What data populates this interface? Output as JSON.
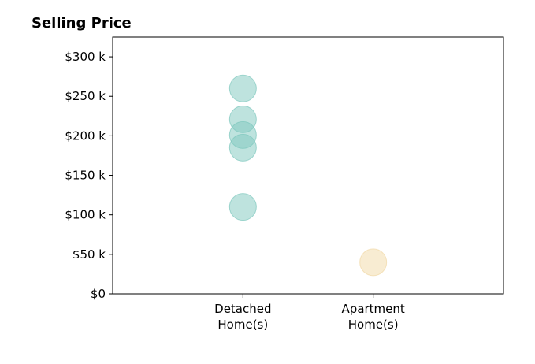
{
  "chart_data": {
    "type": "scatter",
    "title": "Selling Price",
    "xlabel": "",
    "ylabel": "",
    "categories": [
      "Detached Home(s)",
      "Apartment Home(s)"
    ],
    "category_label_lines": [
      [
        "Detached",
        "Home(s)"
      ],
      [
        "Apartment",
        "Home(s)"
      ]
    ],
    "xlim": [
      0,
      3
    ],
    "ylim": [
      0,
      325000
    ],
    "y_ticks": [
      0,
      50000,
      100000,
      150000,
      200000,
      250000,
      300000
    ],
    "y_tick_labels": [
      "$0",
      "$50 k",
      "$100 k",
      "$150 k",
      "$200 k",
      "$250 k",
      "$300 k"
    ],
    "grid": false,
    "legend": "none",
    "series": [
      {
        "category": "Detached Home(s)",
        "x": 1,
        "color": "#7ec8bd",
        "values": [
          260000,
          221000,
          201000,
          185000,
          110000
        ]
      },
      {
        "category": "Apartment Home(s)",
        "x": 2,
        "color": "#f1d9a6",
        "values": [
          40000
        ]
      }
    ]
  }
}
